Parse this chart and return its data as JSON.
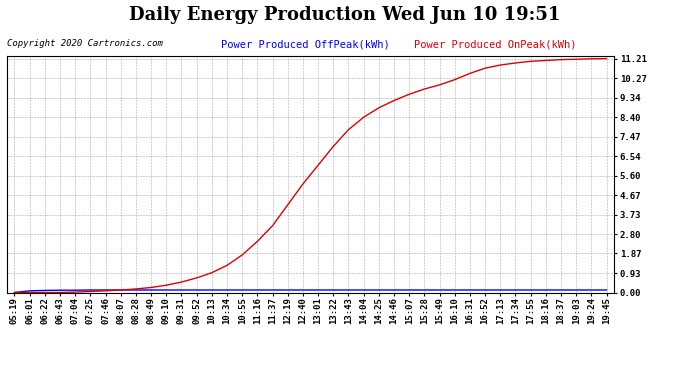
{
  "title": "Daily Energy Production Wed Jun 10 19:51",
  "copyright": "Copyright 2020 Cartronics.com",
  "legend_blue": "Power Produced OffPeak(kWh)",
  "legend_red": "Power Produced OnPeak(kWh)",
  "yticks": [
    0.0,
    0.93,
    1.87,
    2.8,
    3.73,
    4.67,
    5.6,
    6.54,
    7.47,
    8.4,
    9.34,
    10.27,
    11.21
  ],
  "ymax": 11.21,
  "ymin": 0.0,
  "bg_color": "#ffffff",
  "plot_bg_color": "#ffffff",
  "grid_color": "#aaaaaa",
  "border_color": "#000000",
  "blue_color": "#0000ff",
  "red_color": "#dd0000",
  "title_fontsize": 13,
  "label_fontsize": 6.5,
  "copyright_fontsize": 6.5,
  "legend_fontsize": 7.5,
  "xtick_labels": [
    "05:19",
    "06:01",
    "06:22",
    "06:43",
    "07:04",
    "07:25",
    "07:46",
    "08:07",
    "08:28",
    "08:49",
    "09:10",
    "09:31",
    "09:52",
    "10:13",
    "10:34",
    "10:55",
    "11:16",
    "11:37",
    "12:19",
    "12:40",
    "13:01",
    "13:22",
    "13:43",
    "14:04",
    "14:25",
    "14:46",
    "15:07",
    "15:28",
    "15:49",
    "16:10",
    "16:31",
    "16:52",
    "17:13",
    "17:34",
    "17:55",
    "18:16",
    "18:37",
    "19:03",
    "19:24",
    "19:45"
  ],
  "blue_y": [
    0.0,
    0.08,
    0.1,
    0.11,
    0.11,
    0.12,
    0.12,
    0.12,
    0.12,
    0.12,
    0.12,
    0.12,
    0.12,
    0.12,
    0.12,
    0.12,
    0.12,
    0.12,
    0.12,
    0.12,
    0.12,
    0.12,
    0.12,
    0.12,
    0.12,
    0.12,
    0.12,
    0.12,
    0.12,
    0.12,
    0.12,
    0.12,
    0.12,
    0.12,
    0.12,
    0.12,
    0.12,
    0.12,
    0.12,
    0.12
  ],
  "red_y": [
    0.0,
    0.0,
    0.0,
    0.0,
    0.02,
    0.05,
    0.08,
    0.12,
    0.17,
    0.24,
    0.35,
    0.5,
    0.7,
    0.95,
    1.3,
    1.8,
    2.45,
    3.2,
    4.2,
    5.2,
    6.1,
    7.0,
    7.8,
    8.4,
    8.85,
    9.2,
    9.5,
    9.75,
    9.95,
    10.2,
    10.5,
    10.75,
    10.9,
    11.0,
    11.08,
    11.12,
    11.16,
    11.18,
    11.2,
    11.21
  ]
}
